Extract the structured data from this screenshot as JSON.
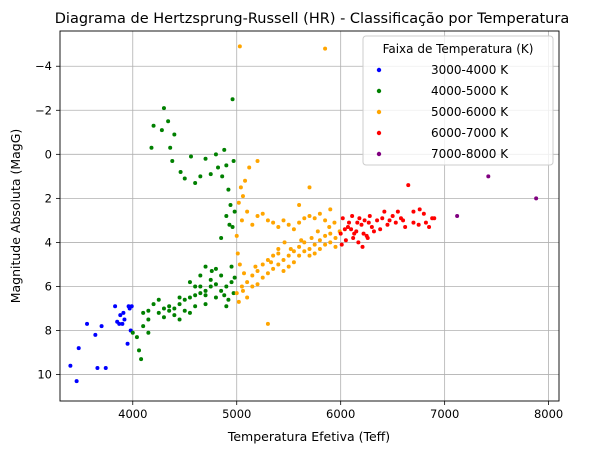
{
  "chart_data": {
    "type": "scatter",
    "title": "Diagrama de Hertzsprung-Russell (HR) - Classificação por Temperatura",
    "xlabel": "Temperatura Efetiva (Teff)",
    "ylabel": "Magnitude Absoluta (MagG)",
    "xlim": [
      3300,
      8100
    ],
    "ylim": [
      11.2,
      -5.6
    ],
    "y_inverted": true,
    "grid": true,
    "xticks": [
      {
        "value": 4000,
        "label": "4000"
      },
      {
        "value": 5000,
        "label": "5000"
      },
      {
        "value": 6000,
        "label": "6000"
      },
      {
        "value": 7000,
        "label": "7000"
      },
      {
        "value": 8000,
        "label": "8000"
      }
    ],
    "yticks": [
      {
        "value": -4,
        "label": "−4"
      },
      {
        "value": -2,
        "label": "−2"
      },
      {
        "value": 0,
        "label": "0"
      },
      {
        "value": 2,
        "label": "2"
      },
      {
        "value": 4,
        "label": "4"
      },
      {
        "value": 6,
        "label": "6"
      },
      {
        "value": 8,
        "label": "8"
      },
      {
        "value": 10,
        "label": "10"
      }
    ],
    "legend": {
      "title": "Faixa de Temperatura (K)",
      "position": "top-right"
    },
    "series": [
      {
        "name": "3000-4000 K",
        "color": "#0000ff",
        "points": [
          [
            3400,
            9.6
          ],
          [
            3460,
            10.3
          ],
          [
            3480,
            8.8
          ],
          [
            3560,
            7.7
          ],
          [
            3640,
            8.2
          ],
          [
            3660,
            9.7
          ],
          [
            3700,
            7.8
          ],
          [
            3740,
            9.7
          ],
          [
            3830,
            6.9
          ],
          [
            3850,
            7.6
          ],
          [
            3880,
            7.3
          ],
          [
            3900,
            7.7
          ],
          [
            3920,
            7.5
          ],
          [
            3950,
            8.6
          ],
          [
            3960,
            6.9
          ],
          [
            3980,
            8.0
          ],
          [
            3990,
            6.9
          ],
          [
            3870,
            7.7
          ],
          [
            3910,
            7.2
          ],
          [
            3970,
            7.0
          ]
        ]
      },
      {
        "name": "4000-5000 K",
        "color": "#008000",
        "points": [
          [
            4000,
            8.1
          ],
          [
            4040,
            8.3
          ],
          [
            4060,
            8.9
          ],
          [
            4080,
            9.3
          ],
          [
            4100,
            7.2
          ],
          [
            4150,
            7.1
          ],
          [
            4200,
            6.8
          ],
          [
            4250,
            7.2
          ],
          [
            4300,
            7.0
          ],
          [
            4350,
            6.9
          ],
          [
            4400,
            7.0
          ],
          [
            4450,
            6.8
          ],
          [
            4500,
            6.6
          ],
          [
            4550,
            6.5
          ],
          [
            4600,
            6.4
          ],
          [
            4650,
            6.3
          ],
          [
            4700,
            6.2
          ],
          [
            4750,
            6.0
          ],
          [
            4800,
            5.9
          ],
          [
            4850,
            6.2
          ],
          [
            4900,
            6.0
          ],
          [
            4950,
            5.8
          ],
          [
            4550,
            5.8
          ],
          [
            4650,
            5.5
          ],
          [
            4700,
            5.1
          ],
          [
            4800,
            5.2
          ],
          [
            4600,
            6.9
          ],
          [
            4700,
            6.8
          ],
          [
            4550,
            7.2
          ],
          [
            4880,
            6.4
          ],
          [
            4920,
            6.6
          ],
          [
            4970,
            6.3
          ],
          [
            4180,
            -0.3
          ],
          [
            4200,
            -1.3
          ],
          [
            4280,
            -1.1
          ],
          [
            4300,
            -2.1
          ],
          [
            4340,
            -1.5
          ],
          [
            4360,
            -0.3
          ],
          [
            4380,
            0.3
          ],
          [
            4400,
            -0.9
          ],
          [
            4460,
            0.8
          ],
          [
            4500,
            1.1
          ],
          [
            4560,
            0.1
          ],
          [
            4600,
            1.3
          ],
          [
            4650,
            1.0
          ],
          [
            4700,
            0.2
          ],
          [
            4750,
            0.9
          ],
          [
            4800,
            0.0
          ],
          [
            4820,
            0.6
          ],
          [
            4860,
            1.0
          ],
          [
            4880,
            -0.2
          ],
          [
            4900,
            0.5
          ],
          [
            4920,
            1.6
          ],
          [
            4940,
            2.3
          ],
          [
            4960,
            3.3
          ],
          [
            4980,
            2.6
          ],
          [
            4900,
            2.8
          ],
          [
            4850,
            3.8
          ],
          [
            4930,
            3.2
          ],
          [
            4960,
            -2.5
          ],
          [
            4970,
            0.3
          ],
          [
            4400,
            7.3
          ],
          [
            4450,
            7.5
          ],
          [
            4350,
            7.1
          ],
          [
            4250,
            6.6
          ],
          [
            4300,
            7.4
          ],
          [
            4150,
            7.5
          ],
          [
            4100,
            7.8
          ],
          [
            4150,
            8.1
          ],
          [
            4600,
            6.0
          ],
          [
            4750,
            5.7
          ],
          [
            4850,
            5.5
          ],
          [
            4950,
            5.1
          ],
          [
            4800,
            6.5
          ],
          [
            4900,
            6.9
          ],
          [
            4700,
            6.4
          ],
          [
            4500,
            7.1
          ],
          [
            4450,
            6.5
          ],
          [
            4650,
            6.0
          ],
          [
            4760,
            5.3
          ],
          [
            4980,
            5.6
          ]
        ]
      },
      {
        "name": "5000-6000 K",
        "color": "#ffa500",
        "points": [
          [
            5030,
            -4.9
          ],
          [
            5850,
            -4.8
          ],
          [
            5000,
            6.3
          ],
          [
            5050,
            6.0
          ],
          [
            5100,
            5.8
          ],
          [
            5150,
            5.5
          ],
          [
            5200,
            5.3
          ],
          [
            5250,
            5.0
          ],
          [
            5300,
            4.8
          ],
          [
            5350,
            4.6
          ],
          [
            5400,
            4.5
          ],
          [
            5450,
            4.8
          ],
          [
            5500,
            4.6
          ],
          [
            5550,
            4.4
          ],
          [
            5600,
            4.2
          ],
          [
            5650,
            4.0
          ],
          [
            5700,
            4.3
          ],
          [
            5750,
            4.1
          ],
          [
            5800,
            3.9
          ],
          [
            5850,
            3.7
          ],
          [
            5900,
            3.6
          ],
          [
            5950,
            3.8
          ],
          [
            5990,
            3.5
          ],
          [
            5000,
            3.7
          ],
          [
            5050,
            3.0
          ],
          [
            5100,
            2.6
          ],
          [
            5150,
            3.2
          ],
          [
            5200,
            2.8
          ],
          [
            5250,
            2.7
          ],
          [
            5300,
            3.0
          ],
          [
            5350,
            3.1
          ],
          [
            5400,
            3.3
          ],
          [
            5450,
            3.0
          ],
          [
            5500,
            3.2
          ],
          [
            5550,
            3.4
          ],
          [
            5600,
            3.1
          ],
          [
            5650,
            2.9
          ],
          [
            5700,
            2.8
          ],
          [
            5750,
            2.9
          ],
          [
            5800,
            2.7
          ],
          [
            5850,
            3.0
          ],
          [
            5900,
            2.5
          ],
          [
            5700,
            1.5
          ],
          [
            5600,
            2.3
          ],
          [
            5080,
            1.2
          ],
          [
            5120,
            0.6
          ],
          [
            5200,
            0.3
          ],
          [
            5060,
            1.9
          ],
          [
            5040,
            1.5
          ],
          [
            5020,
            2.2
          ],
          [
            5010,
            4.5
          ],
          [
            5030,
            5.0
          ],
          [
            5060,
            6.2
          ],
          [
            5100,
            6.5
          ],
          [
            5150,
            6.0
          ],
          [
            5200,
            5.9
          ],
          [
            5250,
            5.6
          ],
          [
            5300,
            5.4
          ],
          [
            5350,
            5.2
          ],
          [
            5400,
            5.0
          ],
          [
            5450,
            5.3
          ],
          [
            5500,
            5.1
          ],
          [
            5550,
            4.9
          ],
          [
            5600,
            4.6
          ],
          [
            5650,
            4.4
          ],
          [
            5700,
            4.6
          ],
          [
            5750,
            4.5
          ],
          [
            5800,
            4.3
          ],
          [
            5850,
            4.1
          ],
          [
            5900,
            4.0
          ],
          [
            5950,
            4.2
          ],
          [
            5300,
            7.7
          ],
          [
            5400,
            4.3
          ],
          [
            5460,
            4.0
          ],
          [
            5780,
            3.5
          ],
          [
            5890,
            3.3
          ],
          [
            5940,
            3.1
          ],
          [
            5020,
            6.7
          ],
          [
            5070,
            5.4
          ],
          [
            5180,
            5.1
          ],
          [
            5330,
            4.9
          ],
          [
            5520,
            4.3
          ],
          [
            5620,
            3.9
          ],
          [
            5720,
            3.8
          ]
        ]
      },
      {
        "name": "6000-7000 K",
        "color": "#ff0000",
        "points": [
          [
            6000,
            3.6
          ],
          [
            6050,
            3.9
          ],
          [
            6100,
            3.4
          ],
          [
            6150,
            3.5
          ],
          [
            6200,
            3.2
          ],
          [
            6250,
            3.7
          ],
          [
            6300,
            3.3
          ],
          [
            6350,
            3.0
          ],
          [
            6400,
            2.9
          ],
          [
            6450,
            3.2
          ],
          [
            6500,
            2.8
          ],
          [
            6550,
            2.6
          ],
          [
            6600,
            3.0
          ],
          [
            6650,
            1.4
          ],
          [
            6700,
            2.6
          ],
          [
            6750,
            3.2
          ],
          [
            6800,
            2.7
          ],
          [
            6850,
            3.3
          ],
          [
            6900,
            2.9
          ],
          [
            6020,
            2.9
          ],
          [
            6080,
            3.1
          ],
          [
            6120,
            3.8
          ],
          [
            6170,
            4.0
          ],
          [
            6220,
            3.6
          ],
          [
            6270,
            3.1
          ],
          [
            6320,
            3.5
          ],
          [
            6180,
            2.9
          ],
          [
            6230,
            3.0
          ],
          [
            6280,
            2.8
          ],
          [
            6130,
            3.6
          ],
          [
            6070,
            3.3
          ],
          [
            6010,
            4.1
          ],
          [
            6040,
            3.4
          ],
          [
            6260,
            3.8
          ],
          [
            6210,
            4.2
          ],
          [
            6160,
            3.1
          ],
          [
            6110,
            2.8
          ],
          [
            6380,
            3.4
          ],
          [
            6420,
            2.6
          ],
          [
            6470,
            3.0
          ],
          [
            6530,
            3.1
          ],
          [
            6580,
            2.9
          ],
          [
            6620,
            3.3
          ],
          [
            6700,
            3.1
          ],
          [
            6760,
            2.5
          ],
          [
            6820,
            3.1
          ],
          [
            6880,
            2.9
          ]
        ]
      },
      {
        "name": "7000-8000 K",
        "color": "#800080",
        "points": [
          [
            7120,
            2.8
          ],
          [
            7420,
            1.0
          ],
          [
            7880,
            2.0
          ]
        ]
      }
    ]
  }
}
